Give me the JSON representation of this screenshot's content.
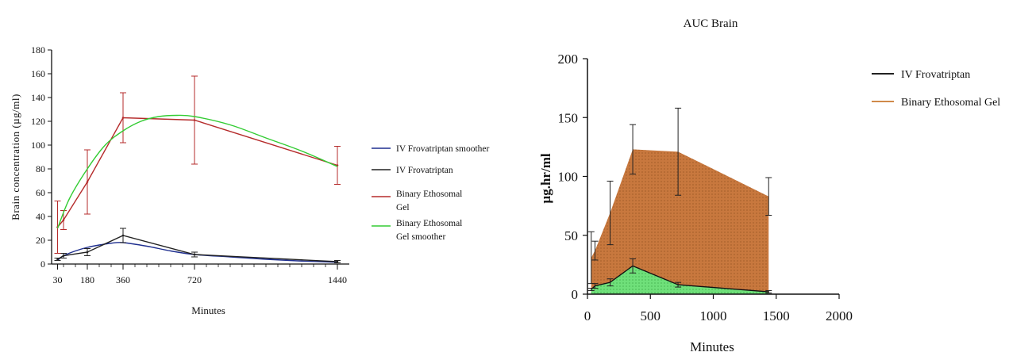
{
  "chart_data": [
    {
      "type": "line",
      "title": "",
      "xlabel": "Minutes",
      "ylabel": "Brain concentration (µg/ml)",
      "xlim": [
        0,
        1500
      ],
      "ylim": [
        0,
        180
      ],
      "x_ticks": [
        30,
        180,
        360,
        720,
        1440
      ],
      "y_ticks": [
        0,
        20,
        40,
        60,
        80,
        100,
        120,
        140,
        160,
        180
      ],
      "legend_position": "right",
      "series": [
        {
          "name": "IV Frovatriptan smoother",
          "color": "#1f2f8f",
          "kind": "smooth",
          "x": [
            30,
            60,
            120,
            180,
            240,
            300,
            360,
            480,
            600,
            720,
            900,
            1080,
            1260,
            1440
          ],
          "y": [
            3,
            7,
            11,
            14,
            16,
            17.5,
            18,
            15,
            11,
            8,
            6,
            4,
            2.5,
            1.5
          ]
        },
        {
          "name": "IV Frovatriptan",
          "color": "#222222",
          "kind": "line",
          "x": [
            30,
            60,
            180,
            360,
            720,
            1440
          ],
          "y": [
            4,
            7,
            10,
            24,
            8,
            2
          ],
          "err": [
            1,
            2,
            3,
            6,
            2,
            1
          ]
        },
        {
          "name": "Binary Ethosomal Gel",
          "color": "#b52b2b",
          "kind": "line",
          "x": [
            30,
            60,
            180,
            360,
            720,
            1440
          ],
          "y": [
            31,
            37,
            69,
            123,
            121,
            83
          ],
          "err": [
            22,
            8,
            27,
            21,
            37,
            16
          ]
        },
        {
          "name": "Binary Ethosomal Gel smoother",
          "color": "#33cc33",
          "kind": "smooth",
          "x": [
            30,
            90,
            180,
            270,
            360,
            450,
            540,
            630,
            720,
            900,
            1080,
            1260,
            1440
          ],
          "y": [
            30,
            55,
            80,
            100,
            112,
            120,
            124,
            125,
            124,
            117,
            106,
            95,
            82
          ]
        }
      ]
    },
    {
      "type": "area",
      "title": "AUC Brain",
      "xlabel": "Minutes",
      "ylabel": "µg.hr/ml",
      "xlim": [
        0,
        2000
      ],
      "ylim": [
        0,
        200
      ],
      "x_ticks": [
        0,
        500,
        1000,
        1500,
        2000
      ],
      "y_ticks": [
        0,
        50,
        100,
        150,
        200
      ],
      "legend_position": "right",
      "series": [
        {
          "name": "Binary Ethosomal Gel",
          "color": "#d08a4a",
          "fill": "#c8783e",
          "x": [
            30,
            60,
            180,
            360,
            720,
            1440
          ],
          "y": [
            31,
            37,
            69,
            123,
            121,
            83
          ],
          "err": [
            22,
            8,
            27,
            21,
            37,
            16
          ]
        },
        {
          "name": "IV Frovatriptan",
          "color": "#222222",
          "fill": "#6fe07a",
          "x": [
            30,
            60,
            180,
            360,
            720,
            1440
          ],
          "y": [
            4,
            7,
            10,
            24,
            8,
            2
          ],
          "err": [
            1,
            2,
            3,
            6,
            2,
            1
          ]
        }
      ]
    }
  ]
}
